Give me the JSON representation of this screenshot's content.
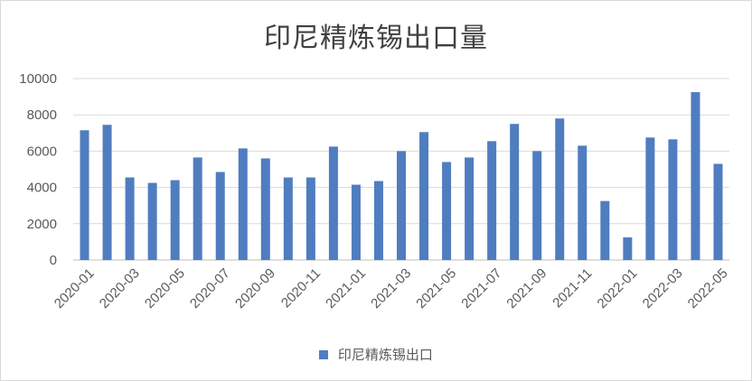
{
  "chart_data": {
    "type": "bar",
    "title": "印尼精炼锡出口量",
    "xlabel": "",
    "ylabel": "",
    "ylim": [
      0,
      10000
    ],
    "yticks": [
      0,
      2000,
      4000,
      6000,
      8000,
      10000
    ],
    "grid": true,
    "legend_position": "bottom",
    "bar_color": "#4f7dc0",
    "categories": [
      "2020-01",
      "2020-02",
      "2020-03",
      "2020-04",
      "2020-05",
      "2020-06",
      "2020-07",
      "2020-08",
      "2020-09",
      "2020-10",
      "2020-11",
      "2020-12",
      "2021-01",
      "2021-02",
      "2021-03",
      "2021-04",
      "2021-05",
      "2021-06",
      "2021-07",
      "2021-08",
      "2021-09",
      "2021-10",
      "2021-11",
      "2021-12",
      "2022-01",
      "2022-02",
      "2022-03",
      "2022-04",
      "2022-05"
    ],
    "visible_tick_labels": [
      "2020-01",
      "2020-03",
      "2020-05",
      "2020-07",
      "2020-09",
      "2020-11",
      "2021-01",
      "2021-03",
      "2021-05",
      "2021-07",
      "2021-09",
      "2021-11",
      "2022-01",
      "2022-03",
      "2022-05"
    ],
    "series": [
      {
        "name": "印尼精炼锡出口",
        "values": [
          7150,
          7450,
          4550,
          4250,
          4400,
          5650,
          4850,
          6150,
          5600,
          4550,
          4550,
          6250,
          4150,
          4350,
          6000,
          7050,
          5400,
          5650,
          6550,
          7500,
          6000,
          7800,
          6300,
          3250,
          1250,
          6750,
          6650,
          9250,
          5300
        ]
      }
    ]
  }
}
